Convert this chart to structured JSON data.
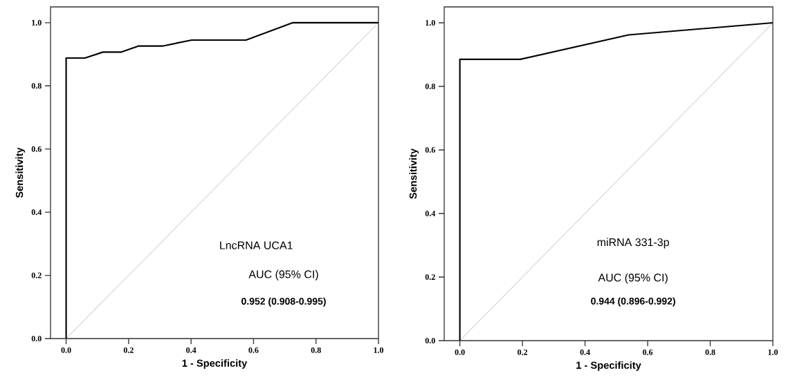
{
  "chart_data": [
    {
      "type": "line",
      "xlabel": "1 - Specificity",
      "ylabel": "Sensitivity",
      "xlim": [
        -0.05,
        1.0
      ],
      "ylim": [
        0,
        1.05
      ],
      "xticks": [
        {
          "value": 0,
          "label": "0.0"
        },
        {
          "value": 0.2,
          "label": "0.2"
        },
        {
          "value": 0.4,
          "label": "0.4"
        },
        {
          "value": 0.6,
          "label": "0.6"
        },
        {
          "value": 0.8,
          "label": "0.8"
        },
        {
          "value": 1.0,
          "label": "1.0"
        }
      ],
      "yticks": [
        {
          "value": 0,
          "label": "0.0"
        },
        {
          "value": 0.2,
          "label": "0.2"
        },
        {
          "value": 0.4,
          "label": "0.4"
        },
        {
          "value": 0.6,
          "label": "0.6"
        },
        {
          "value": 0.8,
          "label": "0.8"
        },
        {
          "value": 1.0,
          "label": "1.0"
        }
      ],
      "grid": false,
      "marker": "none",
      "series": [
        {
          "color": "#d9d9d9",
          "x": [
            0,
            1
          ],
          "values": [
            0,
            1
          ]
        },
        {
          "color": "#000000",
          "x": [
            0,
            0,
            0.06,
            0.118,
            0.177,
            0.231,
            0.308,
            0.402,
            0.576,
            0.726,
            1.0
          ],
          "values": [
            0,
            0.888,
            0.888,
            0.907,
            0.907,
            0.926,
            0.926,
            0.945,
            0.945,
            1.0,
            1.0
          ]
        }
      ],
      "annotations": [
        "LncRNA UCA1",
        "AUC (95% CI)",
        "0.952 (0.908-0.995)"
      ]
    },
    {
      "type": "line",
      "xlabel": "1 - Specificity",
      "ylabel": "Sensitivity",
      "xlim": [
        -0.05,
        1.0
      ],
      "ylim": [
        0,
        1.05
      ],
      "xticks": [
        {
          "value": 0,
          "label": "0.0"
        },
        {
          "value": 0.2,
          "label": "0.2"
        },
        {
          "value": 0.4,
          "label": "0.4"
        },
        {
          "value": 0.6,
          "label": "0.6"
        },
        {
          "value": 0.8,
          "label": "0.8"
        },
        {
          "value": 1.0,
          "label": "1.0"
        }
      ],
      "yticks": [
        {
          "value": 0,
          "label": "0.0"
        },
        {
          "value": 0.2,
          "label": "0.2"
        },
        {
          "value": 0.4,
          "label": "0.4"
        },
        {
          "value": 0.6,
          "label": "0.6"
        },
        {
          "value": 0.8,
          "label": "0.8"
        },
        {
          "value": 1.0,
          "label": "1.0"
        }
      ],
      "grid": false,
      "marker": "none",
      "series": [
        {
          "color": "#d9d9d9",
          "x": [
            0,
            1
          ],
          "values": [
            0,
            1
          ]
        },
        {
          "color": "#000000",
          "x": [
            0,
            0,
            0.193,
            0.539,
            1.0
          ],
          "values": [
            0,
            0.885,
            0.885,
            0.962,
            1.0
          ]
        }
      ],
      "annotations": [
        "miRNA 331-3p",
        "AUC (95% CI)",
        "0.944 (0.896-0.992)"
      ]
    }
  ]
}
